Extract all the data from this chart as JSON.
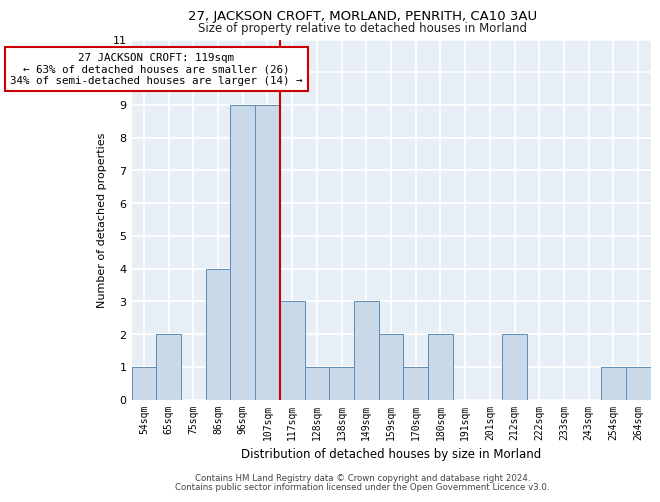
{
  "title1": "27, JACKSON CROFT, MORLAND, PENRITH, CA10 3AU",
  "title2": "Size of property relative to detached houses in Morland",
  "xlabel": "Distribution of detached houses by size in Morland",
  "ylabel": "Number of detached properties",
  "categories": [
    "54sqm",
    "65sqm",
    "75sqm",
    "86sqm",
    "96sqm",
    "107sqm",
    "117sqm",
    "128sqm",
    "138sqm",
    "149sqm",
    "159sqm",
    "170sqm",
    "180sqm",
    "191sqm",
    "201sqm",
    "212sqm",
    "222sqm",
    "233sqm",
    "243sqm",
    "254sqm",
    "264sqm"
  ],
  "values": [
    1,
    2,
    0,
    4,
    9,
    9,
    3,
    1,
    1,
    3,
    2,
    1,
    2,
    0,
    0,
    2,
    0,
    0,
    0,
    1,
    1
  ],
  "bar_color": "#c9d9e8",
  "bar_edge_color": "#5b8db8",
  "background_color": "#e8eef5",
  "grid_color": "#ffffff",
  "annotation_text": "27 JACKSON CROFT: 119sqm\n← 63% of detached houses are smaller (26)\n34% of semi-detached houses are larger (14) →",
  "vline_x_index": 6,
  "vline_color": "#cc0000",
  "annotation_box_color": "#cc0000",
  "ylim": [
    0,
    11
  ],
  "yticks": [
    0,
    1,
    2,
    3,
    4,
    5,
    6,
    7,
    8,
    9,
    10,
    11
  ],
  "footer1": "Contains HM Land Registry data © Crown copyright and database right 2024.",
  "footer2": "Contains public sector information licensed under the Open Government Licence v3.0."
}
